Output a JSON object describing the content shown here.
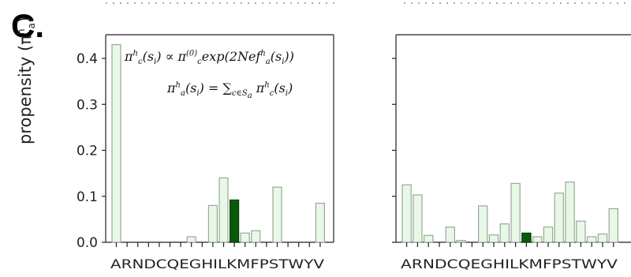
{
  "panel_label": "C.",
  "ylabel": {
    "main": "propensity (",
    "sym": "π",
    "sup": "h",
    "sub": "a",
    "close": ")"
  },
  "equations": {
    "eq1": {
      "lhs": "π",
      "lhs_sup": "h",
      "lhs_sub": "c",
      "lhs_arg": "(s",
      "lhs_arg_sub": "i",
      "lhs_arg_close": ")",
      "rel": " ∝ ",
      "rhs": "π",
      "rhs_sup": "(0)",
      "rhs_sub": "c",
      "tail": "exp(2Nef",
      "tail_sup": "h",
      "tail_sub": "a",
      "tail_arg": "(s",
      "tail_arg_sub": "i",
      "tail_close": "))"
    },
    "eq2": {
      "lhs": "π",
      "lhs_sup": "h",
      "lhs_sub": "a",
      "lhs_arg": "(s",
      "lhs_arg_sub": "i",
      "lhs_arg_close": ")",
      "rel": " = ",
      "sum": "∑",
      "sum_sub": "c∈S",
      "sum_sub2": "a",
      "rhs": " π",
      "rhs_sup": "h",
      "rhs_sub": "c",
      "rhs_arg": "(s",
      "rhs_arg_sub": "i",
      "rhs_close": ")"
    }
  },
  "colors": {
    "bar_fill": "#e8f8e6",
    "bar_edge": "#9aa79a",
    "highlight": "#0a5a0a",
    "axis": "#222222"
  },
  "chart_data": [
    {
      "type": "bar",
      "categories": [
        "A",
        "R",
        "N",
        "D",
        "C",
        "Q",
        "E",
        "G",
        "H",
        "I",
        "L",
        "K",
        "M",
        "F",
        "P",
        "S",
        "T",
        "W",
        "Y",
        "V"
      ],
      "category_label_text": "ARNDCQEGHILKMFPSTWYV",
      "values": [
        0.43,
        0.0,
        0.0,
        0.0,
        0.0,
        0.0,
        0.0,
        0.012,
        0.0,
        0.08,
        0.14,
        0.092,
        0.02,
        0.025,
        0.0,
        0.12,
        0.0,
        0.0,
        0.0,
        0.085
      ],
      "highlight_index": 11,
      "yticks": [
        "0.0",
        "0.1",
        "0.2",
        "0.3",
        "0.4"
      ],
      "ylim": [
        0,
        0.44
      ]
    },
    {
      "type": "bar",
      "categories": [
        "A",
        "R",
        "N",
        "D",
        "C",
        "Q",
        "E",
        "G",
        "H",
        "I",
        "L",
        "K",
        "M",
        "F",
        "P",
        "S",
        "T",
        "W",
        "Y",
        "V"
      ],
      "category_label_text": "ARNDCQEGHILKMFPSTWYV",
      "values": [
        0.125,
        0.103,
        0.015,
        0.0,
        0.033,
        0.004,
        0.0,
        0.079,
        0.016,
        0.04,
        0.128,
        0.02,
        0.012,
        0.033,
        0.107,
        0.131,
        0.046,
        0.012,
        0.018,
        0.073
      ],
      "highlight_index": 11,
      "ylim": [
        0,
        0.44
      ]
    }
  ]
}
